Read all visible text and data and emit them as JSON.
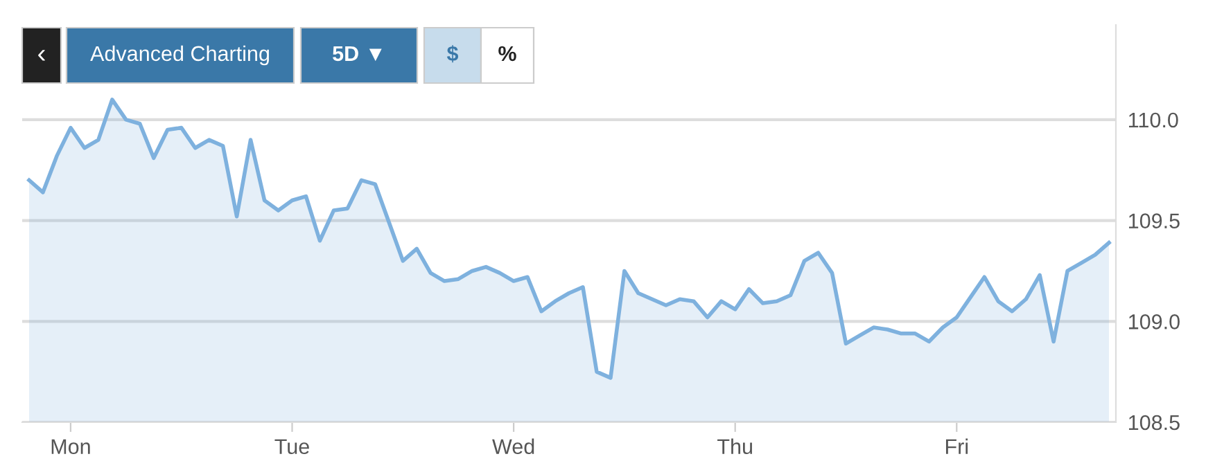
{
  "chart_data": {
    "type": "area",
    "categories": [
      null,
      null,
      null,
      "Mon",
      null,
      null,
      null,
      null,
      null,
      null,
      null,
      null,
      null,
      null,
      null,
      null,
      null,
      null,
      null,
      "Tue",
      null,
      null,
      null,
      null,
      null,
      null,
      null,
      null,
      null,
      null,
      null,
      null,
      null,
      null,
      null,
      "Wed",
      null,
      null,
      null,
      null,
      null,
      null,
      null,
      null,
      null,
      null,
      null,
      null,
      null,
      null,
      null,
      "Thu",
      null,
      null,
      null,
      null,
      null,
      null,
      null,
      null,
      null,
      null,
      null,
      null,
      null,
      null,
      null,
      "Fri",
      null,
      null,
      null,
      null,
      null,
      null,
      null,
      null,
      null,
      null,
      null
    ],
    "series": [
      {
        "color": "#7eb1de",
        "values": [
          109.7,
          109.64,
          109.82,
          109.96,
          109.86,
          109.9,
          110.1,
          110.0,
          109.98,
          109.81,
          109.95,
          109.96,
          109.86,
          109.9,
          109.87,
          109.52,
          109.9,
          109.6,
          109.55,
          109.6,
          109.62,
          109.4,
          109.55,
          109.56,
          109.7,
          109.68,
          109.49,
          109.3,
          109.36,
          109.24,
          109.2,
          109.21,
          109.25,
          109.27,
          109.24,
          109.2,
          109.22,
          109.05,
          109.1,
          109.14,
          109.17,
          108.75,
          108.72,
          109.25,
          109.14,
          109.11,
          109.08,
          109.11,
          109.1,
          109.02,
          109.1,
          109.06,
          109.16,
          109.09,
          109.1,
          109.13,
          109.3,
          109.34,
          109.24,
          108.89,
          108.93,
          108.97,
          108.96,
          108.94,
          108.94,
          108.9,
          108.97,
          109.02,
          109.12,
          109.22,
          109.1,
          109.05,
          109.11,
          109.23,
          108.9,
          109.25,
          109.29,
          109.33,
          109.39
        ]
      }
    ],
    "ylim": [
      108.5,
      110.47
    ],
    "yticks": [
      {
        "value": 108.5,
        "label": "108.5"
      },
      {
        "value": 109.0,
        "label": "109.0"
      },
      {
        "value": 109.5,
        "label": "109.5"
      },
      {
        "value": 110.0,
        "label": "110.0"
      }
    ],
    "grid": "y",
    "annotations": [
      "‹",
      "Advanced Charting",
      "5D ▼",
      "$",
      "%"
    ]
  }
}
